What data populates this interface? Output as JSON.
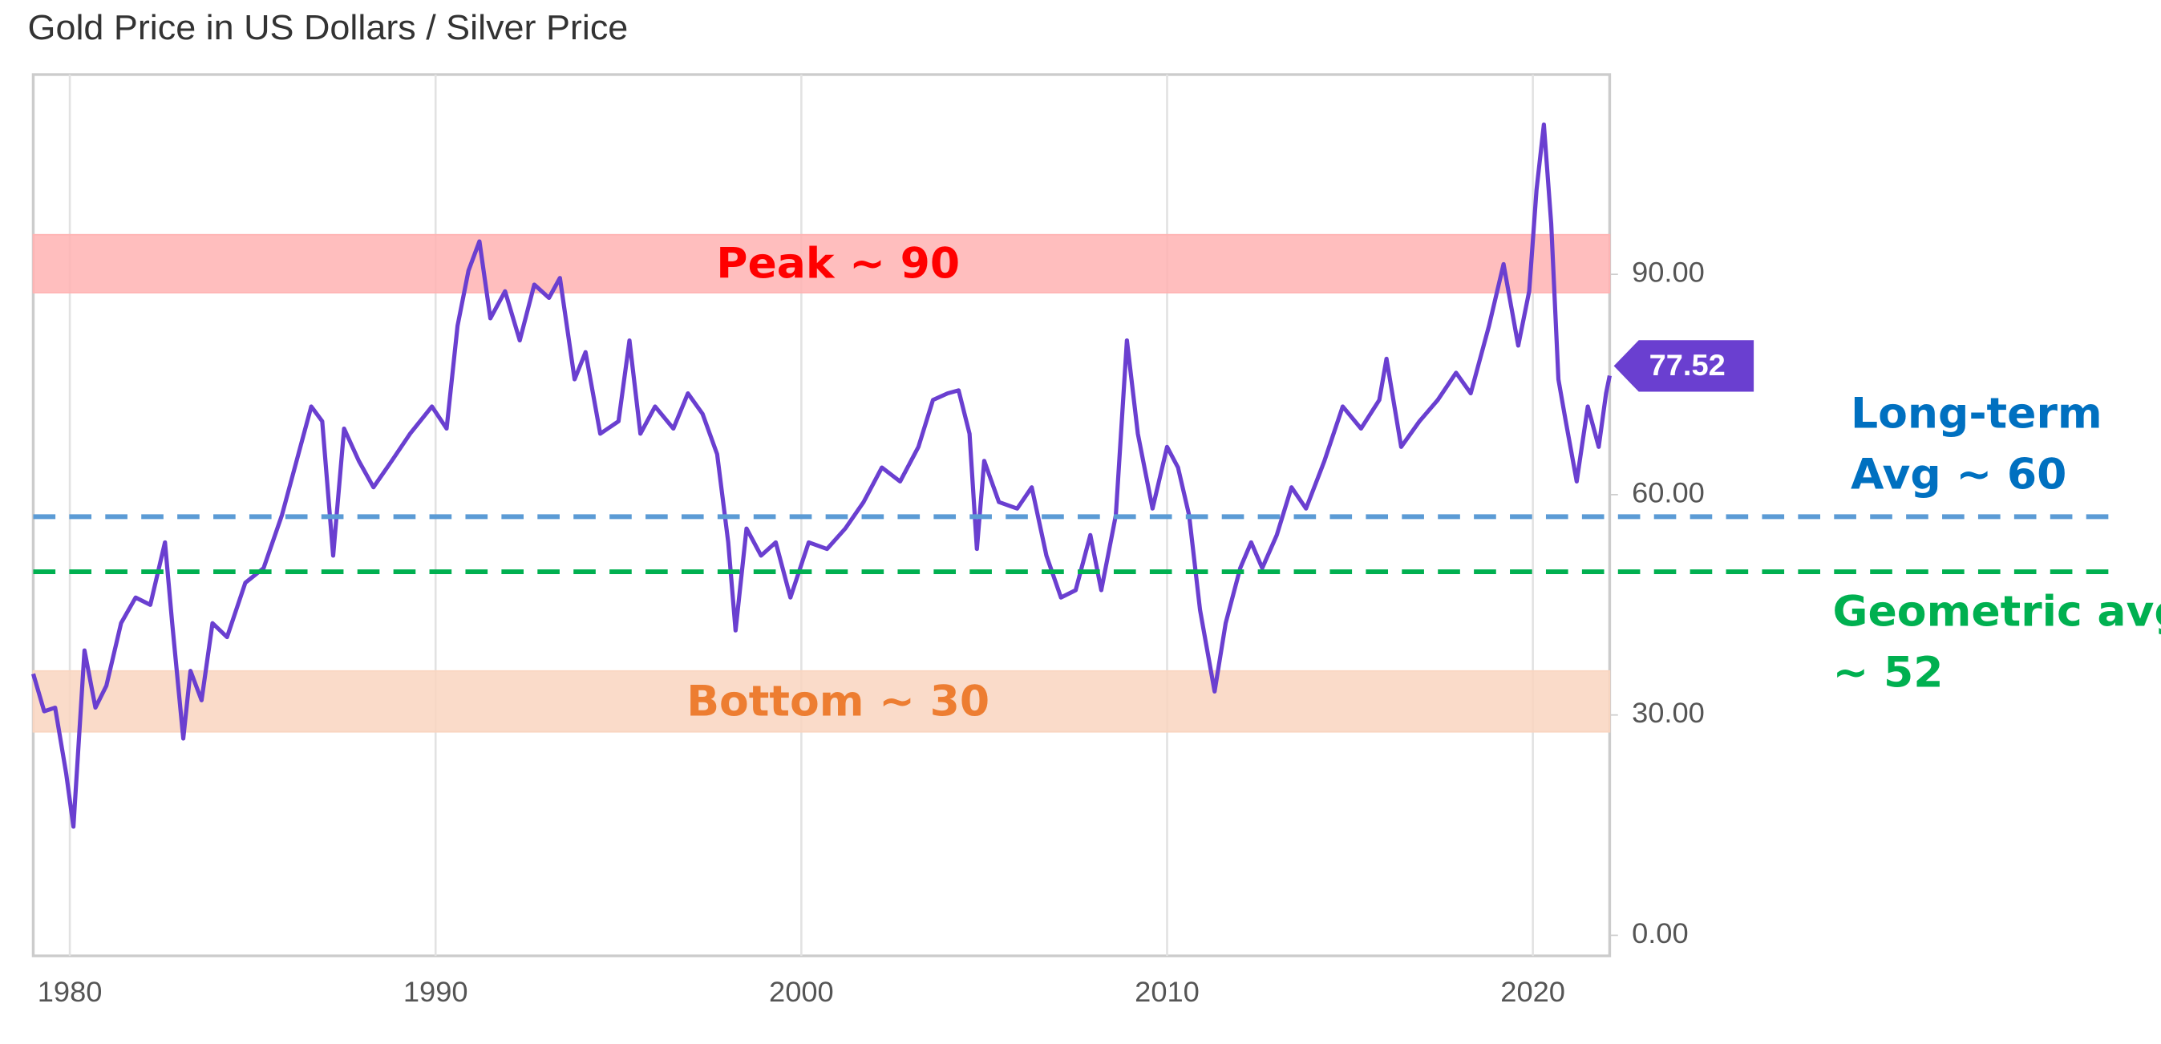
{
  "chart_data": {
    "type": "line",
    "title": "Gold Price in US Dollars / Silver Price",
    "x": [
      1979.0,
      1979.3,
      1979.6,
      1979.9,
      1980.1,
      1980.4,
      1980.7,
      1981.0,
      1981.4,
      1981.8,
      1982.2,
      1982.6,
      1982.8,
      1983.1,
      1983.3,
      1983.6,
      1983.9,
      1984.3,
      1984.8,
      1985.3,
      1985.8,
      1986.2,
      1986.6,
      1986.9,
      1987.2,
      1987.5,
      1987.9,
      1988.3,
      1988.8,
      1989.3,
      1989.9,
      1990.3,
      1990.6,
      1990.9,
      1991.2,
      1991.5,
      1991.9,
      1992.3,
      1992.7,
      1993.1,
      1993.4,
      1993.8,
      1994.1,
      1994.5,
      1995.0,
      1995.3,
      1995.6,
      1996.0,
      1996.5,
      1996.9,
      1997.3,
      1997.7,
      1998.0,
      1998.2,
      1998.5,
      1998.9,
      1999.3,
      1999.7,
      2000.2,
      2000.7,
      2001.2,
      2001.7,
      2002.2,
      2002.7,
      2003.2,
      2003.6,
      2004.0,
      2004.3,
      2004.6,
      2004.8,
      2005.0,
      2005.4,
      2005.9,
      2006.3,
      2006.7,
      2007.1,
      2007.5,
      2007.9,
      2008.2,
      2008.6,
      2008.9,
      2009.2,
      2009.6,
      2010.0,
      2010.3,
      2010.6,
      2010.9,
      2011.3,
      2011.6,
      2012.0,
      2012.3,
      2012.6,
      2013.0,
      2013.4,
      2013.8,
      2014.3,
      2014.8,
      2015.3,
      2015.8,
      2016.0,
      2016.4,
      2016.9,
      2017.4,
      2017.9,
      2018.3,
      2018.8,
      2019.2,
      2019.6,
      2019.9,
      2020.1,
      2020.3,
      2020.5,
      2020.7,
      2020.9,
      2021.2,
      2021.5,
      2021.8,
      2022.0,
      2022.1
    ],
    "series": [
      {
        "color": "#6a3fd0",
        "values": [
          35.6,
          30.5,
          31,
          22,
          14.8,
          38.8,
          31,
          34,
          42.5,
          46,
          45,
          53.5,
          42.5,
          26.8,
          36,
          32,
          42.5,
          40.6,
          48,
          50,
          57.2,
          64.6,
          72,
          70,
          51.7,
          69,
          64.6,
          61,
          64.6,
          68.3,
          72,
          69,
          83,
          90.5,
          94.5,
          84,
          87.7,
          81,
          88.6,
          86.8,
          89.5,
          75.7,
          79.4,
          68.3,
          70,
          81,
          68.3,
          72,
          69,
          73.8,
          71,
          65.5,
          53.5,
          41.5,
          55.4,
          51.7,
          53.5,
          46,
          53.5,
          52.6,
          55.4,
          59,
          63.7,
          61.8,
          66.5,
          72.9,
          73.8,
          74.2,
          68.3,
          52.6,
          64.6,
          59,
          58.1,
          61,
          51.7,
          46,
          47,
          54.5,
          47,
          57.2,
          81,
          68.3,
          58.1,
          66.5,
          63.7,
          57.2,
          44.3,
          33.2,
          42.5,
          50,
          53.5,
          50,
          54.5,
          61,
          58.1,
          64.6,
          72,
          69,
          72.9,
          78.5,
          66.5,
          70,
          72.9,
          76.6,
          73.8,
          83,
          91.4,
          80.3,
          87.7,
          101.5,
          110.4,
          96.9,
          75.7,
          70,
          61.8,
          72,
          66.5,
          73.8,
          76.2
        ]
      }
    ],
    "current_value": 77.52,
    "xlim": [
      1979.0,
      2022.1
    ],
    "xticks": [
      1980,
      1990,
      2000,
      2010,
      2020
    ],
    "ylim": [
      -2.8,
      117.2
    ],
    "yticks": [
      {
        "value": 0,
        "label": "0.00"
      },
      {
        "value": 30,
        "label": "30.00"
      },
      {
        "value": 60,
        "label": "60.00"
      },
      {
        "value": 90,
        "label": "90.00"
      }
    ],
    "grid": "x",
    "bands": [
      {
        "label": "Peak ~ 90",
        "range": [
          87.5,
          95.4
        ],
        "color": "#ffb3b3",
        "label_color": "#ff0000"
      },
      {
        "label": "Bottom ~ 30",
        "range": [
          27.7,
          36
        ],
        "color": "#f9d5c0",
        "label_color": "#ed7d31"
      }
    ],
    "reference_lines": [
      {
        "label_lines": [
          "Long-term",
          "Avg ~ 60"
        ],
        "value": 57,
        "color": "#5b9bd5",
        "label_color": "#0070c0"
      },
      {
        "label_lines": [
          "Geometric avg",
          "~ 52"
        ],
        "value": 49.5,
        "color": "#00b050",
        "label_color": "#00b050"
      }
    ]
  }
}
